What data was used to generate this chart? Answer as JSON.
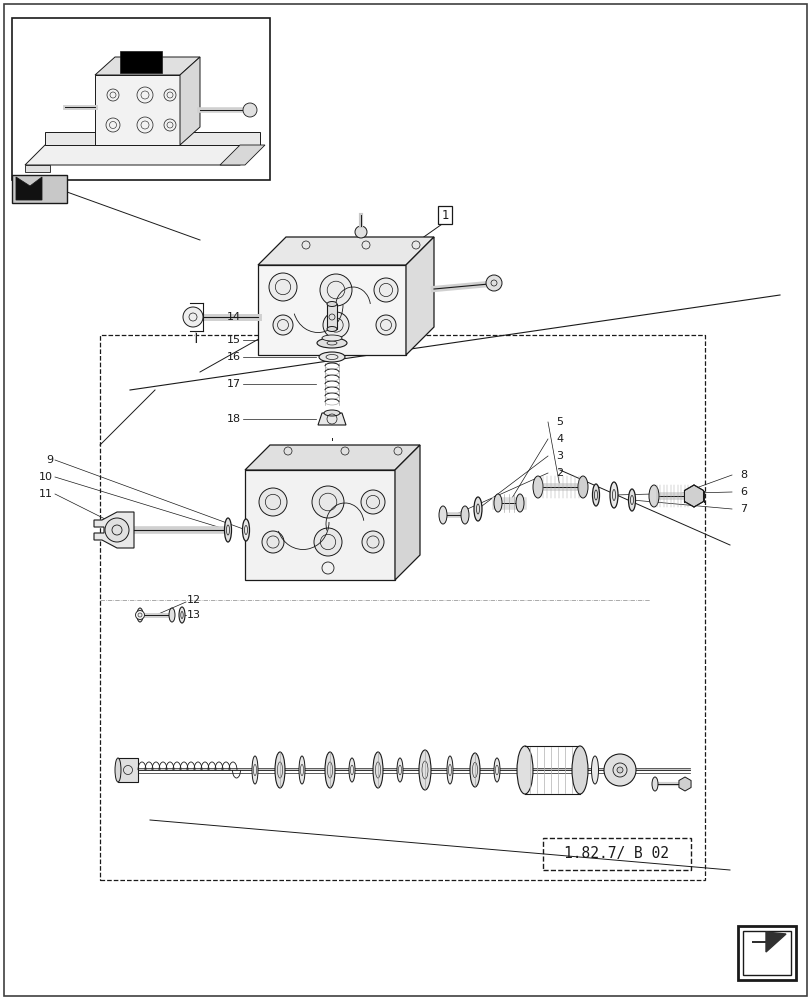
{
  "background_color": "#ffffff",
  "line_color": "#1a1a1a",
  "page_width": 8.12,
  "page_height": 10.0,
  "ref_box_text": "1.82.7/ B 02"
}
